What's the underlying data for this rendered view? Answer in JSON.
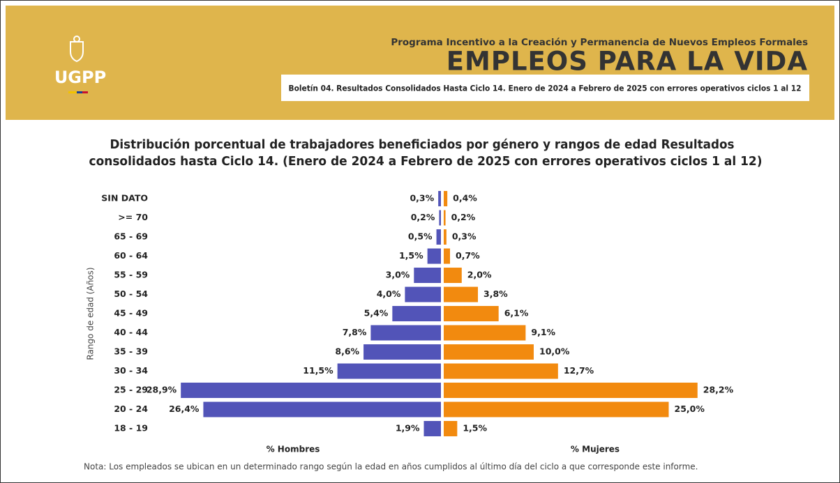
{
  "header": {
    "logo": "UGPP",
    "program": "Programa Incentivo a la Creación y Permanencia de Nuevos Empleos Formales",
    "title": "EMPLEOS PARA LA VIDA",
    "bulletin": "Boletín 04. Resultados Consolidados Hasta Ciclo 14. Enero de 2024 a Febrero de 2025 con errores operativos ciclos 1 al 12"
  },
  "chart_data": {
    "type": "pyramid",
    "title": [
      "Distribución porcentual de trabajadores beneficiados por género y rangos de edad Resultados",
      "consolidados hasta  Ciclo 14. (Enero de 2024 a Febrero de 2025 con errores operativos ciclos 1 al 12)"
    ],
    "y_label": "Rango de edad (Años)",
    "categories": [
      "SIN DATO",
      ">= 70",
      "65 - 69",
      "60 - 64",
      "55 - 59",
      "50 - 54",
      "45 - 49",
      "40 - 44",
      "35 - 39",
      "30 - 34",
      "25 - 29",
      "20 - 24",
      "18 - 19"
    ],
    "xlim": [
      0,
      30
    ],
    "series": [
      {
        "name": "% Hombres",
        "color": "#5254b8",
        "side": "left",
        "values": [
          0.3,
          0.2,
          0.5,
          1.5,
          3.0,
          4.0,
          5.4,
          7.8,
          8.6,
          11.5,
          28.9,
          26.4,
          1.9
        ],
        "value_labels": [
          "0,3%",
          "0,2%",
          "0,5%",
          "1,5%",
          "3,0%",
          "4,0%",
          "5,4%",
          "7,8%",
          "8,6%",
          "11,5%",
          "28,9%",
          "26,4%",
          "1,9%"
        ]
      },
      {
        "name": "% Mujeres",
        "color": "#f28a0f",
        "side": "right",
        "values": [
          0.4,
          0.2,
          0.3,
          0.7,
          2.0,
          3.8,
          6.1,
          9.1,
          10.0,
          12.7,
          28.2,
          25.0,
          1.5
        ],
        "value_labels": [
          "0,4%",
          "0,2%",
          "0,3%",
          "0,7%",
          "2,0%",
          "3,8%",
          "6,1%",
          "9,1%",
          "10,0%",
          "12,7%",
          "28,2%",
          "25,0%",
          "1,5%"
        ]
      }
    ],
    "note": "Nota: Los empleados se ubican en un determinado rango según la edad en años cumplidos al último día del ciclo a que corresponde este informe."
  }
}
